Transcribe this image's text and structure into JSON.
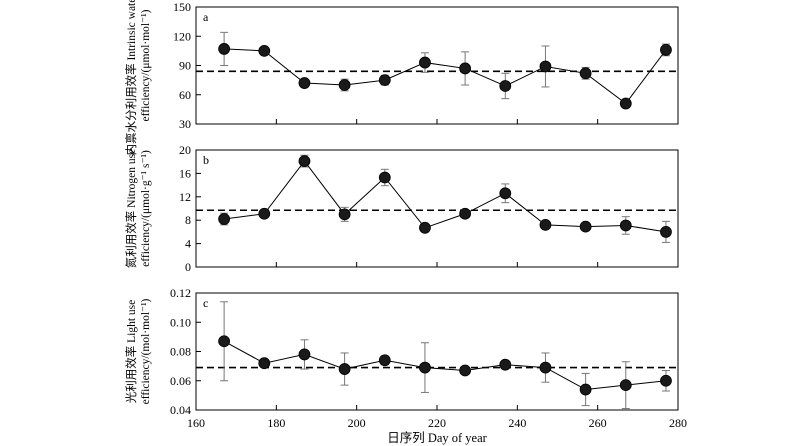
{
  "chart_data": {
    "type": "scatter",
    "xlabel": "日序列 Day of year",
    "xlim": [
      160,
      280
    ],
    "xticks": [
      160,
      180,
      200,
      220,
      240,
      260,
      280
    ],
    "panels": [
      {
        "letter": "a",
        "ylabel_line1": "内禀水分利用效率 Intrinsic water use",
        "ylabel_line2": "efficiency/(μmol·mol⁻¹)",
        "ylim": [
          30,
          150
        ],
        "yticks": [
          30,
          60,
          90,
          120,
          150
        ],
        "tick_labels": [
          "30",
          "60",
          "90",
          "120",
          "150"
        ],
        "mean": 84,
        "x": [
          167,
          177,
          187,
          197,
          207,
          217,
          227,
          237,
          247,
          257,
          267,
          277
        ],
        "y": [
          107,
          105,
          72,
          70,
          75,
          93,
          87,
          69,
          89,
          82,
          51,
          106
        ],
        "err": [
          17,
          2,
          2,
          6,
          5,
          10,
          17,
          13,
          21,
          6,
          2,
          6
        ]
      },
      {
        "letter": "b",
        "ylabel_line1": "氮利用效率 Nitrogen use",
        "ylabel_line2": "efficiency/(μmol·g⁻¹ s⁻¹)",
        "ylim": [
          0,
          20
        ],
        "yticks": [
          0,
          4,
          8,
          12,
          16,
          20
        ],
        "tick_labels": [
          "0",
          "4",
          "8",
          "12",
          "16",
          "20"
        ],
        "mean": 9.7,
        "x": [
          167,
          177,
          187,
          197,
          207,
          217,
          227,
          237,
          247,
          257,
          267,
          277
        ],
        "y": [
          8.2,
          9.1,
          18.1,
          9.0,
          15.3,
          6.7,
          9.1,
          12.6,
          7.2,
          6.9,
          7.1,
          6.0
        ],
        "err": [
          1.0,
          0.4,
          1.0,
          1.2,
          1.4,
          0.6,
          0.4,
          1.6,
          0.3,
          0.3,
          1.5,
          1.8
        ]
      },
      {
        "letter": "c",
        "ylabel_line1": "光利用效率 Light use",
        "ylabel_line2": "efficiency/(mol·mol⁻¹)",
        "ylim": [
          0.04,
          0.12
        ],
        "yticks": [
          0.04,
          0.06,
          0.08,
          0.1,
          0.12
        ],
        "tick_labels": [
          "0.04",
          "0.06",
          "0.08",
          "0.10",
          "0.12"
        ],
        "mean": 0.069,
        "x": [
          167,
          177,
          187,
          197,
          207,
          217,
          227,
          237,
          247,
          257,
          267,
          277
        ],
        "y": [
          0.087,
          0.072,
          0.078,
          0.068,
          0.074,
          0.069,
          0.067,
          0.071,
          0.069,
          0.054,
          0.057,
          0.06
        ],
        "err": [
          0.027,
          0.001,
          0.01,
          0.011,
          0.003,
          0.017,
          0.001,
          0.002,
          0.01,
          0.011,
          0.016,
          0.007
        ]
      }
    ]
  }
}
